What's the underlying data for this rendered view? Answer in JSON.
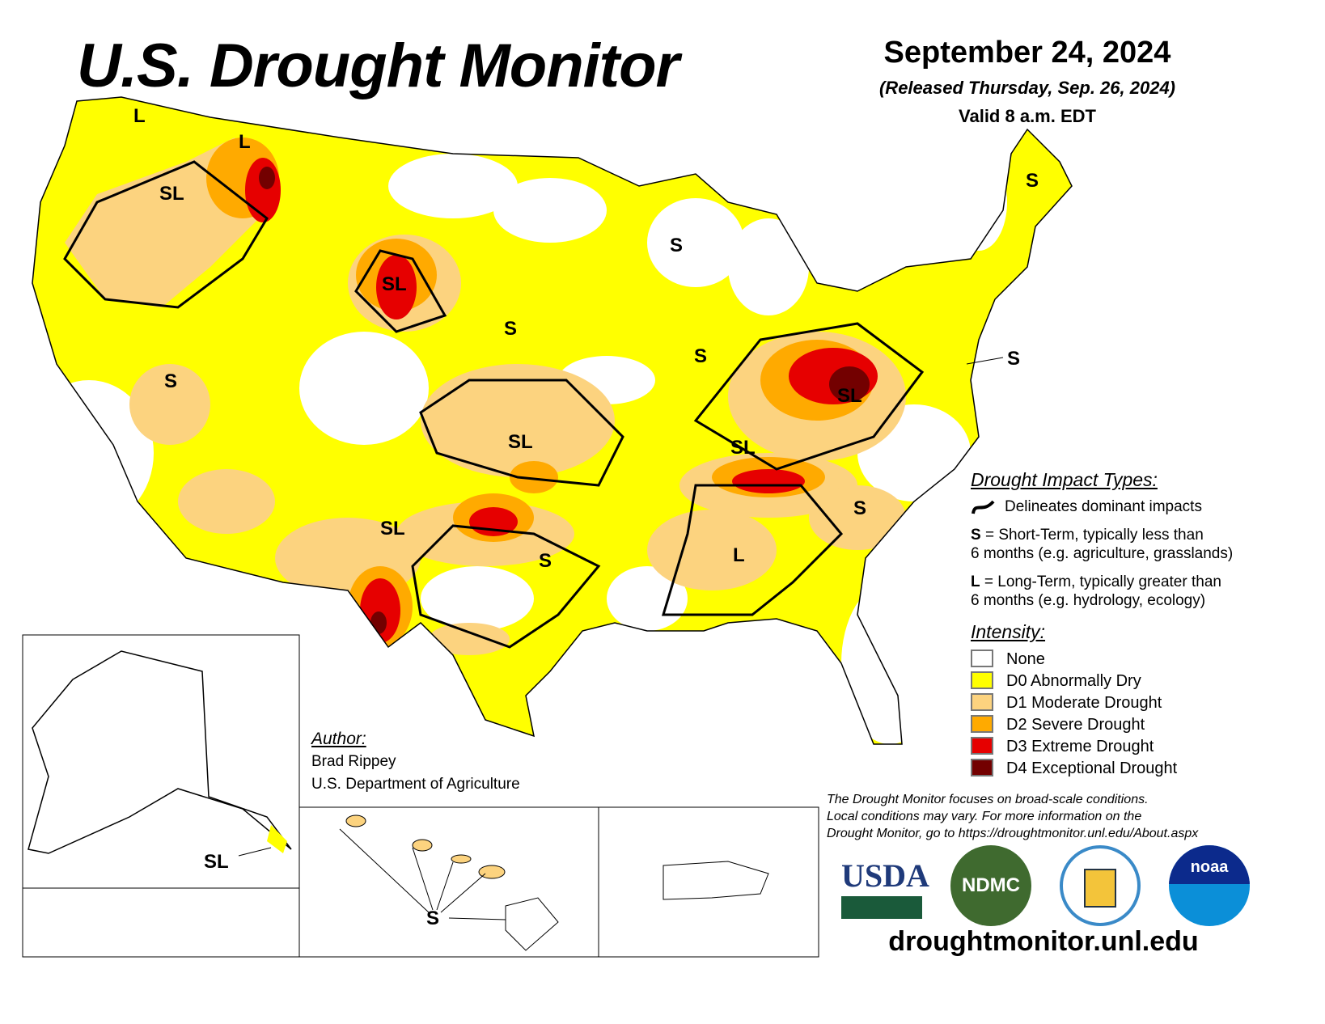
{
  "header": {
    "title": "U.S. Drought Monitor",
    "date": "September 24, 2024",
    "released": "(Released Thursday, Sep. 26, 2024)",
    "valid": "Valid 8 a.m. EDT"
  },
  "impact_labels": {
    "s": "S",
    "l": "L",
    "sl": "SL"
  },
  "legend": {
    "impact_title": "Drought Impact Types:",
    "delineates": "Delineates dominant impacts",
    "short_key": "S",
    "short_text": " = Short-Term, typically less than",
    "short_text2": "6 months (e.g. agriculture, grasslands)",
    "long_key": "L",
    "long_text": " = Long-Term, typically greater than",
    "long_text2": "6 months (e.g. hydrology, ecology)",
    "intensity_title": "Intensity:",
    "intensity": [
      {
        "label": "None",
        "color": "#ffffff"
      },
      {
        "label": "D0 Abnormally Dry",
        "color": "#ffff00"
      },
      {
        "label": "D1 Moderate Drought",
        "color": "#fcd37f"
      },
      {
        "label": "D2 Severe Drought",
        "color": "#ffaa00"
      },
      {
        "label": "D3 Extreme Drought",
        "color": "#e60000"
      },
      {
        "label": "D4 Exceptional Drought",
        "color": "#730000"
      }
    ]
  },
  "author": {
    "heading": "Author:",
    "name": "Brad Rippey",
    "org": "U.S. Department of Agriculture"
  },
  "disclaimer": [
    "The Drought Monitor focuses on broad-scale conditions.",
    "Local conditions may vary. For more information on the",
    "Drought Monitor, go to https://droughtmonitor.unl.edu/About.aspx"
  ],
  "logos": {
    "usda": "USDA",
    "ndmc": "NDMC",
    "noaa": "NOAA"
  },
  "url": "droughtmonitor.unl.edu"
}
